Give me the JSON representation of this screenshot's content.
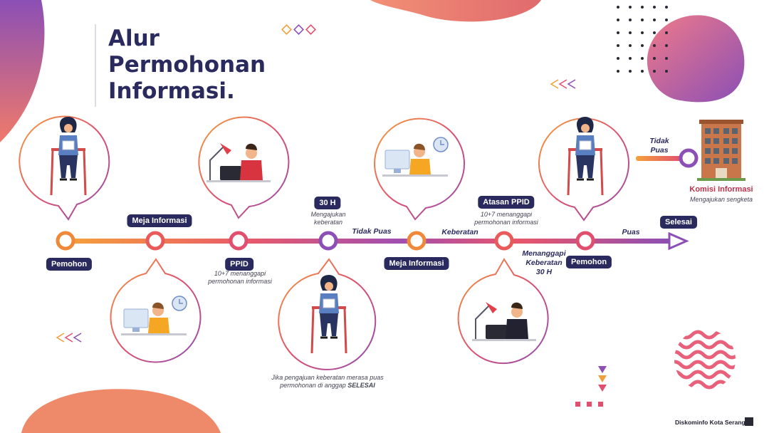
{
  "title_lines": [
    "Alur",
    "Permohonan",
    "Informasi."
  ],
  "nodes": {
    "pemohon_start": "Pemohon",
    "meja_informasi_1": "Meja Informasi",
    "ppid": "PPID",
    "h30": "30 H",
    "meja_informasi_2": "Meja Informasi",
    "atasan_ppid": "Atasan PPID",
    "pemohon_end": "Pemohon",
    "selesai": "Selesai"
  },
  "notes": {
    "ppid": [
      "10+7 menanggapi",
      "permohonan informasi"
    ],
    "h30": [
      "Mengajukan",
      "keberatan"
    ],
    "atasan_ppid": [
      "10+7 menanggapi",
      "permohonan informasi"
    ],
    "bottom_prefix": "Jika pengajuan keberatan merasa puas",
    "bottom_line2": "permohonan di anggap ",
    "bottom_emph": "SELESAI"
  },
  "edge_labels": {
    "tidak_puas": "Tidak Puas",
    "keberatan": "Keberatan",
    "menanggapi": [
      "Menanggapi",
      "Keberatan",
      "30 H"
    ],
    "puas": "Puas",
    "tidak_puas_branch": [
      "Tidak",
      "Puas"
    ]
  },
  "komisi": {
    "title": "Komisi Informasi",
    "subtitle": "Mengajukan sengketa"
  },
  "footer": "Diskominfo Kota Serang",
  "colors": {
    "navy": "#2a2a5e",
    "orange": "#f0883a",
    "pink": "#e0506e",
    "purple": "#8b4fb5",
    "coral": "#e07a68"
  },
  "icons": {
    "person_sitting": "woman-reading-icon",
    "person_desk": "man-at-desk-icon",
    "building": "building-icon"
  }
}
